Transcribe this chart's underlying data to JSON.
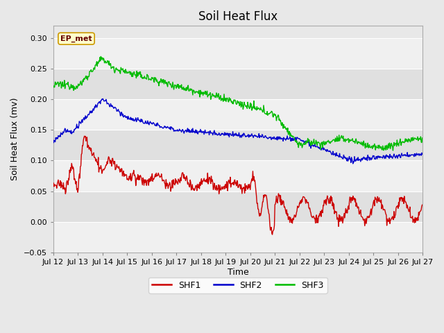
{
  "title": "Soil Heat Flux",
  "xlabel": "Time",
  "ylabel": "Soil Heat Flux (mv)",
  "ylim": [
    -0.05,
    0.32
  ],
  "xlim": [
    0,
    360
  ],
  "x_tick_labels": [
    "Jul 12",
    "Jul 13",
    "Jul 14",
    "Jul 15",
    "Jul 16",
    "Jul 17",
    "Jul 18",
    "Jul 19",
    "Jul 20",
    "Jul 21",
    "Jul 22",
    "Jul 23",
    "Jul 24",
    "Jul 25",
    "Jul 26",
    "Jul 27"
  ],
  "x_tick_positions": [
    0,
    24,
    48,
    72,
    96,
    120,
    144,
    168,
    192,
    216,
    240,
    264,
    288,
    312,
    336,
    360
  ],
  "yticks": [
    -0.05,
    0.0,
    0.05,
    0.1,
    0.15,
    0.2,
    0.25,
    0.3
  ],
  "colors": {
    "SHF1": "#cc0000",
    "SHF2": "#0000cc",
    "SHF3": "#00bb00"
  },
  "legend_label": "EP_met",
  "legend_bg": "#ffffcc",
  "legend_border": "#cc9900",
  "fig_bg": "#e8e8e8",
  "plot_bg": "#e8e8e8",
  "grid_color": "#ffffff",
  "linewidth": 1.0
}
